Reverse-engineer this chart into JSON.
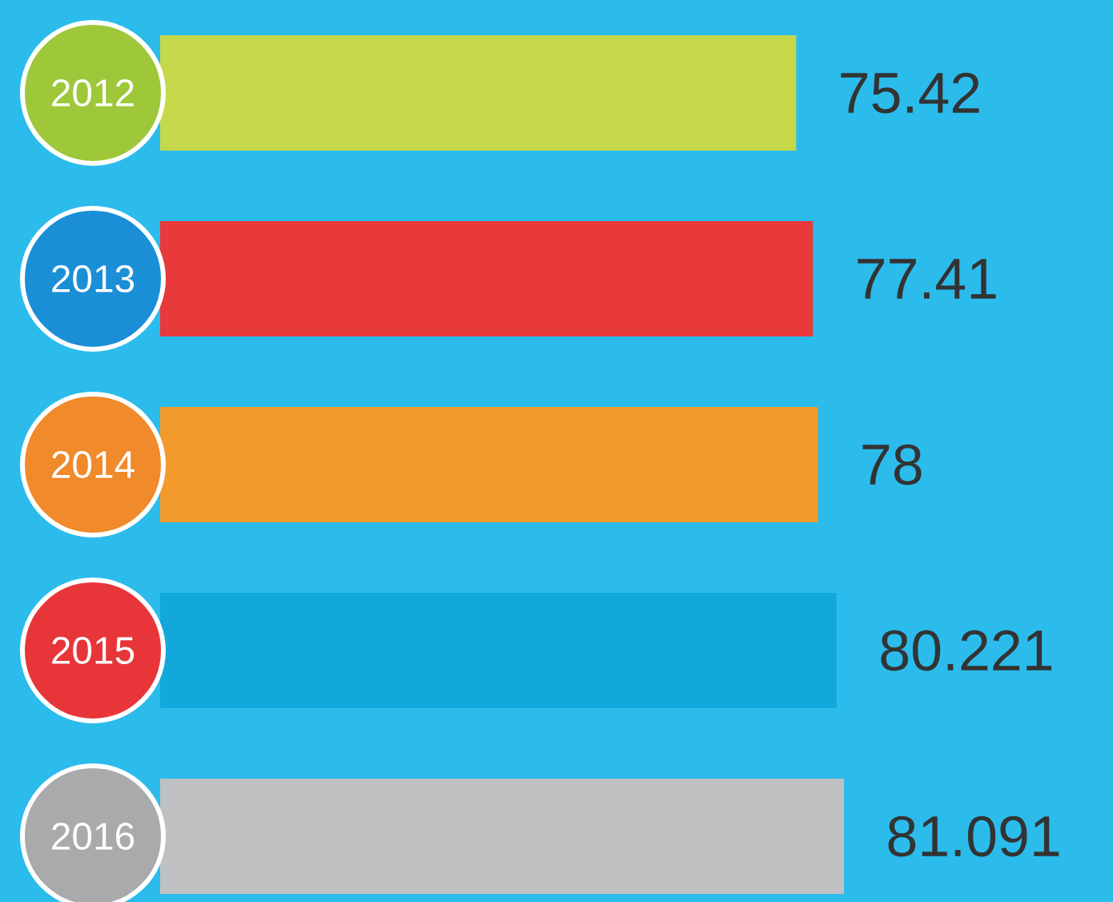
{
  "chart_data": {
    "type": "bar",
    "orientation": "horizontal",
    "categories": [
      "2012",
      "2013",
      "2014",
      "2015",
      "2016"
    ],
    "values": [
      75.42,
      77.41,
      78,
      80.221,
      81.091
    ],
    "colors": [
      "#c5d84a",
      "#e83a3a",
      "#f39a2c",
      "#12a8dc",
      "#bfc1c3"
    ],
    "tick_labels": "y",
    "data_labels": true
  }
}
